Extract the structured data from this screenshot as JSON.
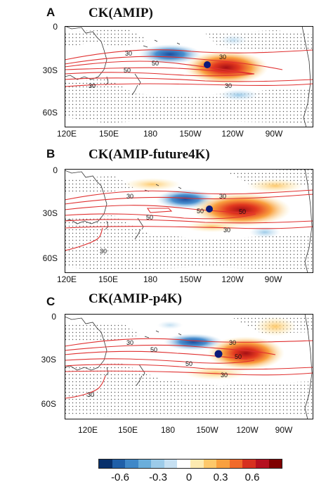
{
  "panels": [
    {
      "letter": "A",
      "title": "CK(AMIP)",
      "lat_labels": [
        "0",
        "30S",
        "60S"
      ],
      "lon_labels": [
        "120E",
        "150E",
        "180",
        "150W",
        "120W",
        "90W"
      ],
      "contour_labels": [
        "30",
        "30",
        "50",
        "50",
        "30",
        "30"
      ]
    },
    {
      "letter": "B",
      "title": "CK(AMIP-future4K)",
      "lat_labels": [
        "0",
        "30S",
        "60S"
      ],
      "lon_labels": [
        "120E",
        "150E",
        "180",
        "150W",
        "120W",
        "90W"
      ],
      "contour_labels": [
        "30",
        "30",
        "50",
        "50",
        "50",
        "30",
        "30"
      ]
    },
    {
      "letter": "C",
      "title": "CK(AMIP-p4K)",
      "lat_labels": [
        "0",
        "30S",
        "60S"
      ],
      "lon_labels": [
        "120E",
        "150E",
        "180",
        "150W",
        "120W",
        "90W"
      ],
      "contour_labels": [
        "30",
        "30",
        "50",
        "50",
        "50",
        "30",
        "30"
      ]
    }
  ],
  "colorbar": {
    "colors": [
      "#08306b",
      "#1f5fa8",
      "#3f88c8",
      "#6aaedb",
      "#9ccbe9",
      "#c6e0f2",
      "#ffffff",
      "#fdeab0",
      "#fdc86a",
      "#f9a03f",
      "#f16a2a",
      "#d7301f",
      "#b50f1f",
      "#7f0000"
    ],
    "tick_labels": [
      "-0.6",
      "-0.3",
      "0",
      "0.3",
      "0.6"
    ]
  },
  "colors": {
    "contour": "#e03030",
    "marker": "#0a1a7a",
    "coast": "#333333"
  }
}
